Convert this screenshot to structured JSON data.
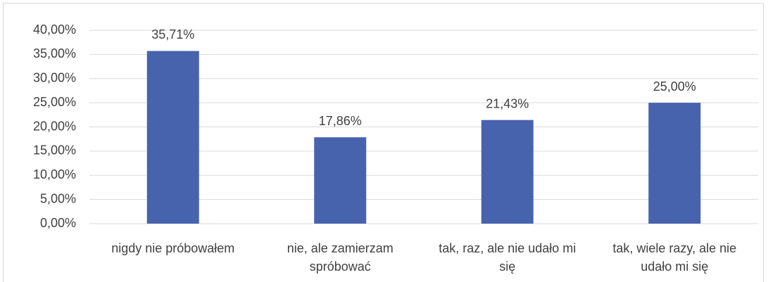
{
  "chart_data": {
    "type": "bar",
    "categories": [
      "nigdy nie próbowałem",
      "nie, ale zamierzam spróbować",
      "tak, raz, ale nie udało mi się",
      "tak, wiele razy, ale nie udało mi się"
    ],
    "values": [
      35.71,
      17.86,
      21.43,
      25.0
    ],
    "value_labels": [
      "35,71%",
      "17,86%",
      "21,43%",
      "25,00%"
    ],
    "color": "#4763ae",
    "ylim": [
      0,
      40
    ],
    "yticks": [
      {
        "value": 0,
        "label": "0,00%"
      },
      {
        "value": 5,
        "label": "5,00%"
      },
      {
        "value": 10,
        "label": "10,00%"
      },
      {
        "value": 15,
        "label": "15,00%"
      },
      {
        "value": 20,
        "label": "20,00%"
      },
      {
        "value": 25,
        "label": "25,00%"
      },
      {
        "value": 30,
        "label": "30,00%"
      },
      {
        "value": 35,
        "label": "35,00%"
      },
      {
        "value": 40,
        "label": "40,00%"
      }
    ],
    "grid": true
  }
}
